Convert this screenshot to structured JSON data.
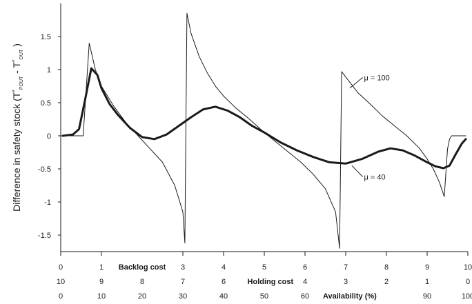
{
  "chart_data": {
    "type": "line",
    "ylabel": "Difference in safety stock  (T*POUT - T*OUT )",
    "ylabel_parts": {
      "prefix": "Difference in safety stock  (T",
      "sup1": "*",
      "sub1": "POUT",
      "mid": " - T",
      "sup2": "*",
      "sub2": "OUT",
      "suffix": " )"
    },
    "ylim": [
      -1.75,
      2.0
    ],
    "yticks": [
      1.5,
      1,
      0.5,
      0,
      -0.5,
      -1,
      -1.5
    ],
    "ytick_labels": [
      "1.5",
      "1",
      "0.5",
      "0",
      "-0.5",
      "-1",
      "-1.5"
    ],
    "xlim": [
      0,
      10
    ],
    "x_axes": [
      {
        "title": "Backlog cost",
        "title_position": 2.0,
        "ticks": [
          0,
          1,
          3,
          4,
          5,
          6,
          7,
          8,
          9,
          10
        ],
        "labels": [
          "0",
          "1",
          "3",
          "4",
          "5",
          "6",
          "7",
          "8",
          "9",
          "10"
        ]
      },
      {
        "title": "Holding cost",
        "title_position": 5.15,
        "ticks": [
          0,
          1,
          2,
          3,
          4,
          6,
          7,
          8,
          9,
          10
        ],
        "labels": [
          "10",
          "9",
          "8",
          "7",
          "6",
          "4",
          "3",
          "2",
          "1",
          "0"
        ]
      },
      {
        "title": "Availability (%)",
        "title_position": 7.1,
        "ticks": [
          0,
          1,
          2,
          3,
          4,
          5,
          6,
          9,
          10
        ],
        "labels": [
          "0",
          "10",
          "20",
          "30",
          "40",
          "50",
          "60",
          "90",
          "100"
        ]
      }
    ],
    "series": [
      {
        "name": "μ = 100",
        "line_width": "thin",
        "x": [
          0.0,
          0.5,
          0.55,
          0.7,
          0.85,
          1.0,
          1.3,
          1.6,
          1.9,
          2.2,
          2.5,
          2.8,
          3.0,
          3.05,
          3.1,
          3.2,
          3.4,
          3.6,
          3.8,
          4.0,
          4.3,
          4.6,
          5.0,
          5.3,
          5.6,
          5.9,
          6.2,
          6.5,
          6.75,
          6.85,
          6.9,
          7.05,
          7.3,
          7.6,
          7.9,
          8.2,
          8.5,
          8.8,
          9.0,
          9.15,
          9.3,
          9.42,
          9.5,
          9.55,
          9.6,
          9.8,
          9.95
        ],
        "y": [
          0.0,
          0.0,
          0.0,
          1.4,
          1.0,
          0.75,
          0.45,
          0.2,
          0.0,
          -0.2,
          -0.4,
          -0.75,
          -1.15,
          -1.62,
          1.85,
          1.55,
          1.2,
          0.95,
          0.75,
          0.6,
          0.42,
          0.27,
          0.05,
          -0.1,
          -0.25,
          -0.4,
          -0.58,
          -0.8,
          -1.15,
          -1.7,
          0.97,
          0.85,
          0.65,
          0.48,
          0.3,
          0.15,
          0.0,
          -0.18,
          -0.35,
          -0.5,
          -0.7,
          -0.92,
          -0.2,
          -0.05,
          0.0,
          0.0,
          0.0
        ]
      },
      {
        "name": "μ = 40",
        "line_width": "thick",
        "x": [
          0.05,
          0.3,
          0.45,
          0.6,
          0.75,
          0.9,
          1.0,
          1.2,
          1.4,
          1.7,
          2.0,
          2.3,
          2.6,
          2.9,
          3.2,
          3.5,
          3.8,
          4.1,
          4.4,
          4.7,
          5.0,
          5.4,
          5.8,
          6.2,
          6.6,
          7.0,
          7.4,
          7.8,
          8.1,
          8.4,
          8.7,
          9.0,
          9.2,
          9.4,
          9.55,
          9.7,
          9.85,
          9.95
        ],
        "y": [
          0.0,
          0.02,
          0.1,
          0.55,
          1.02,
          0.92,
          0.72,
          0.48,
          0.32,
          0.12,
          -0.02,
          -0.05,
          0.02,
          0.15,
          0.28,
          0.4,
          0.44,
          0.38,
          0.28,
          0.15,
          0.05,
          -0.1,
          -0.22,
          -0.32,
          -0.4,
          -0.42,
          -0.35,
          -0.24,
          -0.19,
          -0.22,
          -0.3,
          -0.4,
          -0.46,
          -0.49,
          -0.45,
          -0.28,
          -0.12,
          -0.05
        ]
      }
    ],
    "annotations": [
      {
        "text": "μ = 100",
        "at": [
          7.45,
          0.85
        ],
        "pointer_to": [
          7.1,
          0.72
        ]
      },
      {
        "text": "μ = 40",
        "at": [
          7.45,
          -0.65
        ],
        "pointer_to": [
          7.15,
          -0.45
        ]
      }
    ],
    "grid": false
  }
}
